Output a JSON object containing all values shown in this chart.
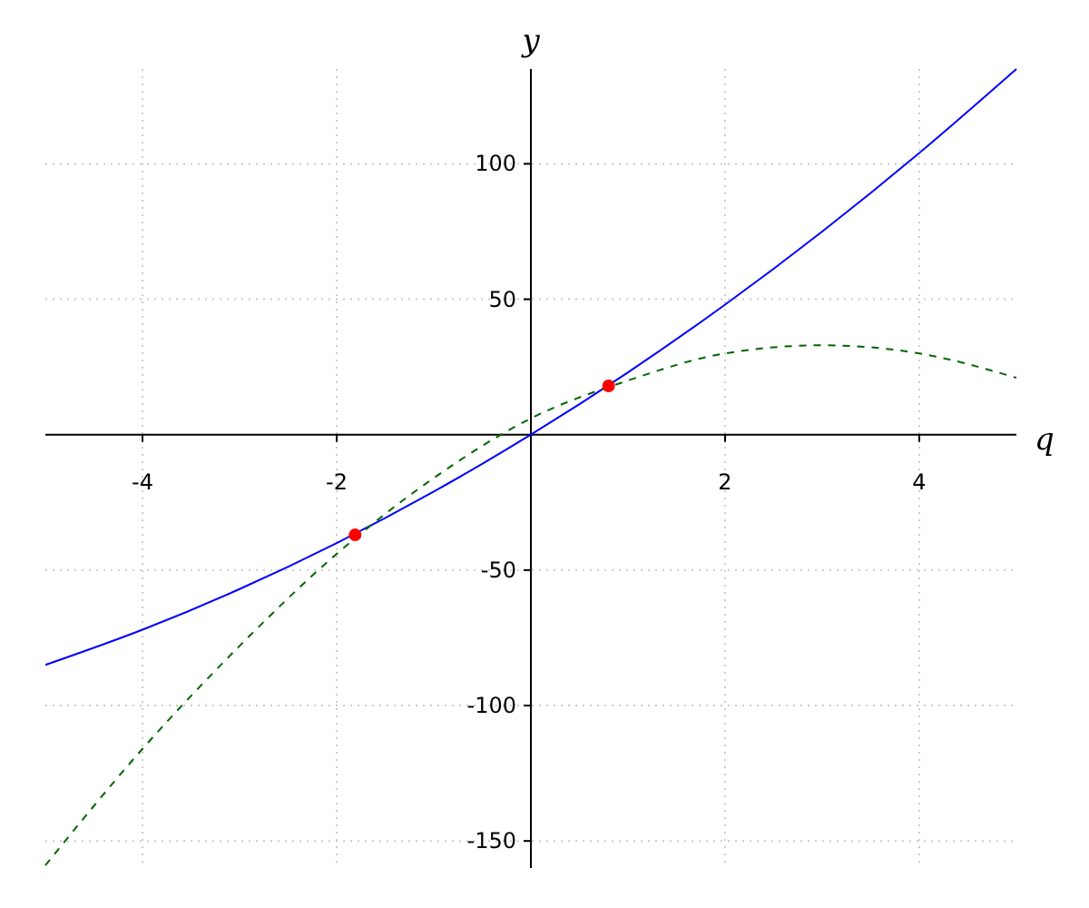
{
  "chart_data": {
    "type": "line",
    "xlabel": "q",
    "ylabel": "y",
    "x": [
      -5,
      -4,
      -3,
      -2,
      -1,
      0,
      1,
      2,
      3,
      4,
      5
    ],
    "xlim": [
      -5,
      5
    ],
    "ylim": [
      -160,
      135
    ],
    "xticks": [
      -4,
      -2,
      2,
      4
    ],
    "yticks": [
      -150,
      -100,
      -50,
      50,
      100
    ],
    "grid": true,
    "series": [
      {
        "color": "#0000ff",
        "line_style": "solid",
        "values": [
          -85,
          -72,
          -57,
          -40,
          -21,
          0,
          23,
          48,
          75,
          104,
          135
        ]
      },
      {
        "color": "#006400",
        "line_style": "dashed",
        "values": [
          -159,
          -116,
          -78,
          -44,
          -16,
          6,
          20,
          30,
          33,
          30,
          21
        ]
      },
      {
        "type": "scatter",
        "color": "#ff0000",
        "marker": "circle",
        "x": [
          -1.81,
          0.8
        ],
        "values": [
          -37,
          18
        ]
      }
    ]
  }
}
